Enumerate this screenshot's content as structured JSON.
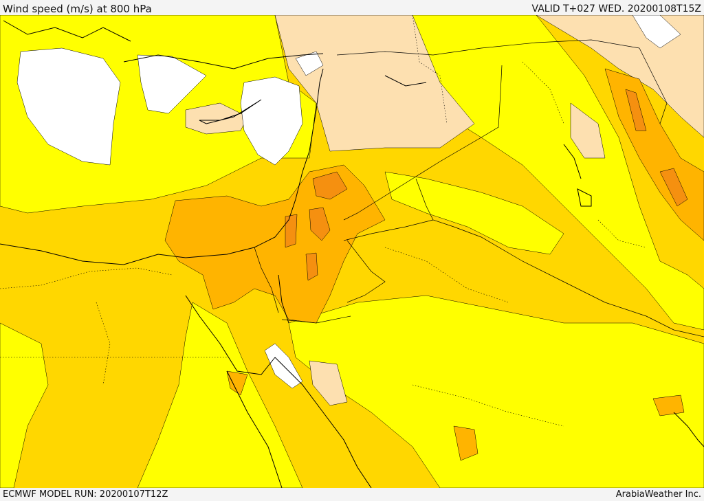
{
  "header": {
    "title": "Wind speed (m/s) at 800 hPa",
    "valid": "VALID T+027 WED. 20200108T15Z"
  },
  "footer": {
    "model_run": "ECMWF MODEL RUN: 20200107T12Z",
    "credit": "ArabiaWeather Inc."
  },
  "colors": {
    "calm": "#ffffff",
    "light": "#fde0b0",
    "moderate": "#ffff00",
    "fresh": "#ffd700",
    "strong": "#ffb400",
    "very_strong": "#f59010",
    "coast": "#000000"
  }
}
